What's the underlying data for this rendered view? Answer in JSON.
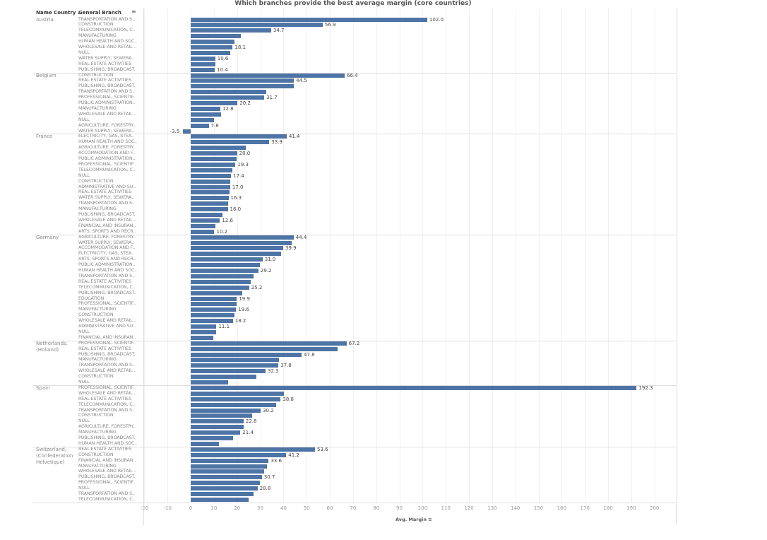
{
  "chart_data": {
    "type": "bar",
    "orientation": "horizontal",
    "title": "Which branches provide the best average margin (core countries)",
    "row_headers": [
      "Name Country ..",
      "General Branch"
    ],
    "xlabel": "Avg. Margin",
    "xlim": [
      -20,
      200
    ],
    "xticks": [
      -20,
      -10,
      0,
      10,
      20,
      30,
      40,
      50,
      60,
      70,
      80,
      90,
      100,
      110,
      120,
      130,
      140,
      150,
      160,
      170,
      180,
      190,
      200
    ],
    "grid": true,
    "bar_color": "#4e74a6",
    "groups": [
      {
        "country": "Austria",
        "rows": [
          {
            "branch": "TRANSPORTATION AND S..",
            "value": 102.0,
            "label": "102.0"
          },
          {
            "branch": "CONSTRUCTION",
            "value": 56.9,
            "label": "56.9"
          },
          {
            "branch": "TELECOMMUNICATION, C..",
            "value": 34.7,
            "label": "34.7"
          },
          {
            "branch": "MANUFACTURING",
            "value": 21.6
          },
          {
            "branch": "HUMAN HEALTH AND SOC..",
            "value": 18.8
          },
          {
            "branch": "WHOLESALE AND RETAIL ..",
            "value": 18.1,
            "label": "18.1"
          },
          {
            "branch": "NULL",
            "value": 17.0
          },
          {
            "branch": "WATER SUPPLY; SEWERA..",
            "value": 10.6,
            "label": "10.6"
          },
          {
            "branch": "REAL ESTATE ACTIVITIES",
            "value": 10.8
          },
          {
            "branch": "PUBLISHING, BROADCAST..",
            "value": 10.4,
            "label": "10.4"
          }
        ]
      },
      {
        "country": "Belgium",
        "rows": [
          {
            "branch": "CONSTRUCTION",
            "value": 66.4,
            "label": "66.4"
          },
          {
            "branch": "REAL ESTATE ACTIVITIES",
            "value": 44.5,
            "label": "44.5"
          },
          {
            "branch": "PUBLISHING, BROADCAST..",
            "value": 44.4
          },
          {
            "branch": "TRANSPORTATION AND S..",
            "value": 32.6
          },
          {
            "branch": "PROFESSIONAL, SCIENTIF..",
            "value": 31.7,
            "label": "31.7"
          },
          {
            "branch": "PUBLIC ADMINISTRATION..",
            "value": 20.2,
            "label": "20.2"
          },
          {
            "branch": "MANUFACTURING",
            "value": 12.8,
            "label": "12.8"
          },
          {
            "branch": "WHOLESALE AND RETAIL ..",
            "value": 13.0
          },
          {
            "branch": "NULL",
            "value": 10.2
          },
          {
            "branch": "AGRICULTURE, FORESTRY..",
            "value": 7.8,
            "label": "7.8"
          },
          {
            "branch": "WATER SUPPLY; SEWERA..",
            "value": -3.5,
            "label": "-3.5"
          }
        ]
      },
      {
        "country": "France",
        "rows": [
          {
            "branch": "ELECTRICITY, GAS, STEA..",
            "value": 41.4,
            "label": "41.4"
          },
          {
            "branch": "HUMAN HEALTH AND SOC..",
            "value": 33.9,
            "label": "33.9"
          },
          {
            "branch": "AGRICULTURE, FORESTRY..",
            "value": 23.9
          },
          {
            "branch": "ACCOMMODATION AND F..",
            "value": 20.0,
            "label": "20.0"
          },
          {
            "branch": "PUBLIC ADMINISTRATION..",
            "value": 19.9
          },
          {
            "branch": "PROFESSIONAL, SCIENTIF..",
            "value": 19.3,
            "label": "19.3"
          },
          {
            "branch": "TELECOMMUNICATION, C..",
            "value": 18.1
          },
          {
            "branch": "NULL",
            "value": 17.4,
            "label": "17.4"
          },
          {
            "branch": "CONSTRUCTION",
            "value": 17.2
          },
          {
            "branch": "ADMINISTRATIVE AND SU..",
            "value": 17.0,
            "label": "17.0"
          },
          {
            "branch": "REAL ESTATE ACTIVITIES",
            "value": 16.9
          },
          {
            "branch": "WATER SUPPLY; SEWERA..",
            "value": 16.3,
            "label": "16.3"
          },
          {
            "branch": "TRANSPORTATION AND S..",
            "value": 16.2
          },
          {
            "branch": "MANUFACTURING",
            "value": 16.0,
            "label": "16.0"
          },
          {
            "branch": "PUBLISHING, BROADCAST..",
            "value": 13.8
          },
          {
            "branch": "WHOLESALE AND RETAIL ..",
            "value": 12.6,
            "label": "12.6"
          },
          {
            "branch": "FINANCIAL AND INSURAN..",
            "value": 10.8
          },
          {
            "branch": "ARTS, SPORTS AND RECR..",
            "value": 10.2,
            "label": "10.2"
          }
        ]
      },
      {
        "country": "Germany",
        "rows": [
          {
            "branch": "AGRICULTURE, FORESTRY..",
            "value": 44.4,
            "label": "44.4"
          },
          {
            "branch": "WATER SUPPLY; SEWERA..",
            "value": 43.7
          },
          {
            "branch": "ACCOMMODATION AND F..",
            "value": 39.9,
            "label": "39.9"
          },
          {
            "branch": "ELECTRICITY, GAS, STEA..",
            "value": 38.9
          },
          {
            "branch": "ARTS, SPORTS AND RECR..",
            "value": 31.0,
            "label": "31.0"
          },
          {
            "branch": "PUBLIC ADMINISTRATION..",
            "value": 29.7
          },
          {
            "branch": "HUMAN HEALTH AND SOC..",
            "value": 29.2,
            "label": "29.2"
          },
          {
            "branch": "TRANSPORTATION AND S..",
            "value": 27.2
          },
          {
            "branch": "REAL ESTATE ACTIVITIES",
            "value": 25.8
          },
          {
            "branch": "TELECOMMUNICATION, C..",
            "value": 25.2,
            "label": "25.2"
          },
          {
            "branch": "PUBLISHING, BROADCAST..",
            "value": 22.2
          },
          {
            "branch": "EDUCATION",
            "value": 19.9,
            "label": "19.9"
          },
          {
            "branch": "PROFESSIONAL, SCIENTIF..",
            "value": 19.8
          },
          {
            "branch": "MANUFACTURING",
            "value": 19.6,
            "label": "19.6"
          },
          {
            "branch": "CONSTRUCTION",
            "value": 18.8
          },
          {
            "branch": "WHOLESALE AND RETAIL ..",
            "value": 18.2,
            "label": "18.2"
          },
          {
            "branch": "ADMINISTRATIVE AND SU..",
            "value": 11.1,
            "label": "11.1"
          },
          {
            "branch": "NULL",
            "value": 10.9
          },
          {
            "branch": "FINANCIAL AND INSURAN..",
            "value": 9.7
          }
        ]
      },
      {
        "country": "Netherlands, (Holland)",
        "rows": [
          {
            "branch": "PROFESSIONAL, SCIENTIF..",
            "value": 67.2,
            "label": "67.2"
          },
          {
            "branch": "REAL ESTATE ACTIVITIES",
            "value": 63.4
          },
          {
            "branch": "PUBLISHING, BROADCAST..",
            "value": 47.8,
            "label": "47.8"
          },
          {
            "branch": "MANUFACTURING",
            "value": 38.2
          },
          {
            "branch": "TRANSPORTATION AND S..",
            "value": 37.8,
            "label": "37.8"
          },
          {
            "branch": "WHOLESALE AND RETAIL ..",
            "value": 32.3,
            "label": "32.3"
          },
          {
            "branch": "CONSTRUCTION",
            "value": 28.4
          },
          {
            "branch": "NULL",
            "value": 16.2
          }
        ]
      },
      {
        "country": "Spain",
        "rows": [
          {
            "branch": "PROFESSIONAL, SCIENTIF..",
            "value": 192.3,
            "label": "192.3"
          },
          {
            "branch": "WHOLESALE AND RETAIL ..",
            "value": 40.3
          },
          {
            "branch": "REAL ESTATE ACTIVITIES",
            "value": 38.8,
            "label": "38.8"
          },
          {
            "branch": "TELECOMMUNICATION, C..",
            "value": 36.8
          },
          {
            "branch": "TRANSPORTATION AND S..",
            "value": 30.2,
            "label": "30.2"
          },
          {
            "branch": "CONSTRUCTION",
            "value": 26.5
          },
          {
            "branch": "NULL",
            "value": 22.8,
            "label": "22.8"
          },
          {
            "branch": "AGRICULTURE, FORESTRY..",
            "value": 22.7
          },
          {
            "branch": "MANUFACTURING",
            "value": 21.4,
            "label": "21.4"
          },
          {
            "branch": "PUBLISHING, BROADCAST..",
            "value": 18.4
          },
          {
            "branch": "HUMAN HEALTH AND SOC..",
            "value": 12.2
          }
        ]
      },
      {
        "country": "Switzerland, (Confederation Helvetique)",
        "rows": [
          {
            "branch": "REAL ESTATE ACTIVITIES",
            "value": 53.6,
            "label": "53.6"
          },
          {
            "branch": "CONSTRUCTION",
            "value": 41.2,
            "label": "41.2"
          },
          {
            "branch": "FINANCIAL AND INSURAN..",
            "value": 33.6,
            "label": "33.6"
          },
          {
            "branch": "MANUFACTURING",
            "value": 32.9
          },
          {
            "branch": "WHOLESALE AND RETAIL ..",
            "value": 31.8
          },
          {
            "branch": "PUBLISHING, BROADCAST..",
            "value": 30.7,
            "label": "30.7"
          },
          {
            "branch": "PROFESSIONAL, SCIENTIF..",
            "value": 29.9
          },
          {
            "branch": "NULL",
            "value": 28.8,
            "label": "28.8"
          },
          {
            "branch": "TRANSPORTATION AND S..",
            "value": 27.1
          },
          {
            "branch": "TELECOMMUNICATION, C..",
            "value": 25.1
          }
        ]
      }
    ]
  },
  "icons": {
    "sort": "sort-descending-icon"
  }
}
